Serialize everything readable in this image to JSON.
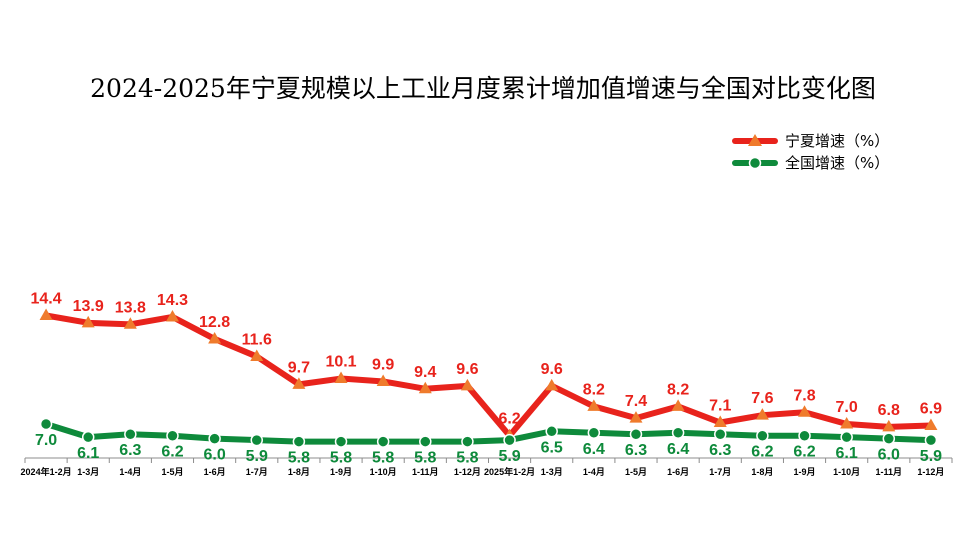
{
  "chart_data": {
    "type": "line",
    "title": "2024-2025年宁夏规模以上工业月度累计增加值增速与全国对比变化图",
    "categories": [
      "2024年1-2月",
      "1-3月",
      "1-4月",
      "1-5月",
      "1-6月",
      "1-7月",
      "1-8月",
      "1-9月",
      "1-10月",
      "1-11月",
      "1-12月",
      "2025年1-2月",
      "1-3月",
      "1-4月",
      "1-5月",
      "1-6月",
      "1-7月",
      "1-8月",
      "1-9月",
      "1-10月",
      "1-11月",
      "1-12月"
    ],
    "series": [
      {
        "name": "宁夏增速（%）",
        "color": "#e8231c",
        "marker": "triangle",
        "values": [
          14.4,
          13.9,
          13.8,
          14.3,
          12.8,
          11.6,
          9.7,
          10.1,
          9.9,
          9.4,
          9.6,
          6.2,
          9.6,
          8.2,
          7.4,
          8.2,
          7.1,
          7.6,
          7.8,
          7.0,
          6.8,
          6.9
        ]
      },
      {
        "name": "全国增速（%）",
        "color": "#0e8a3b",
        "marker": "circle",
        "values": [
          7.0,
          6.1,
          6.3,
          6.2,
          6.0,
          5.9,
          5.8,
          5.8,
          5.8,
          5.8,
          5.8,
          5.9,
          6.5,
          6.4,
          6.3,
          6.4,
          6.3,
          6.2,
          6.2,
          6.1,
          6.0,
          5.9
        ]
      }
    ],
    "legend": "top-right",
    "grid": false,
    "xlabel": "",
    "ylabel": ""
  }
}
